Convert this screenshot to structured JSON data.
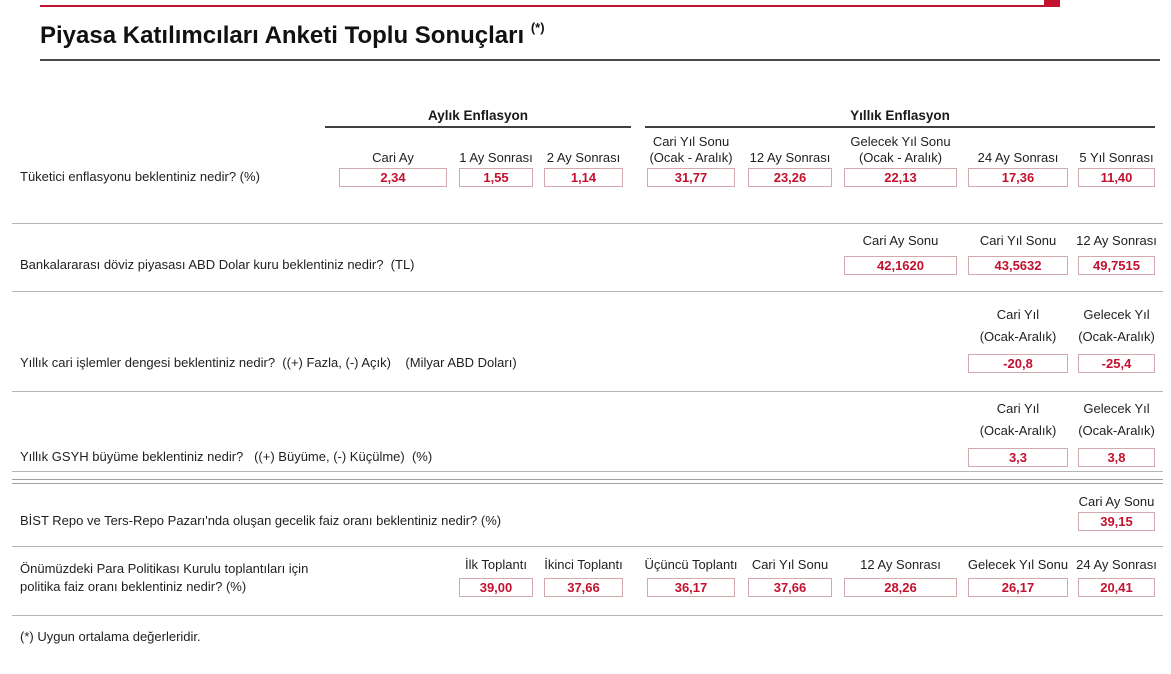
{
  "page": {
    "title": "Piyasa Katılımcıları Anketi Toplu Sonuçları",
    "title_note": "(*)",
    "footnote": "(*) Uygun ortalama değerleridir.",
    "accent_color": "#c3112f",
    "value_color": "#c3112f",
    "box_border_color": "#d2a9ad"
  },
  "table": {
    "group_headers": {
      "monthly": "Aylık Enflasyon",
      "yearly": "Yıllık Enflasyon"
    },
    "sections": [
      {
        "question": "Tüketici enflasyonu beklentiniz nedir? (%)",
        "columns": [
          {
            "header": "Cari Ay",
            "value": "2,34"
          },
          {
            "header": "1 Ay Sonrası",
            "value": "1,55"
          },
          {
            "header": "2 Ay Sonrası",
            "value": "1,14"
          },
          {
            "header": "Cari Yıl Sonu",
            "header2": "(Ocak - Aralık)",
            "value": "31,77"
          },
          {
            "header": "12 Ay Sonrası",
            "value": "23,26"
          },
          {
            "header": "Gelecek Yıl Sonu",
            "header2": "(Ocak - Aralık)",
            "value": "22,13"
          },
          {
            "header": "24 Ay Sonrası",
            "value": "17,36"
          },
          {
            "header": "5 Yıl Sonrası",
            "value": "11,40"
          }
        ]
      },
      {
        "question": "Bankalararası döviz piyasası ABD Dolar kuru beklentiniz nedir?  (TL)",
        "columns": [
          {
            "header": "Cari Ay Sonu",
            "value": "42,1620"
          },
          {
            "header": "Cari Yıl Sonu",
            "value": "43,5632"
          },
          {
            "header": "12 Ay Sonrası",
            "value": "49,7515"
          }
        ]
      },
      {
        "question": "Yıllık cari işlemler dengesi beklentiniz nedir?  ((+) Fazla, (-) Açık)    (Milyar ABD Doları)",
        "columns": [
          {
            "header": "Cari Yıl",
            "header2": "(Ocak-Aralık)",
            "value": "-20,8"
          },
          {
            "header": "Gelecek Yıl",
            "header2": "(Ocak-Aralık)",
            "value": "-25,4"
          }
        ]
      },
      {
        "question": "Yıllık GSYH büyüme beklentiniz nedir?   ((+) Büyüme, (-) Küçülme)  (%)",
        "columns": [
          {
            "header": "Cari Yıl",
            "header2": "(Ocak-Aralık)",
            "value": "3,3"
          },
          {
            "header": "Gelecek Yıl",
            "header2": "(Ocak-Aralık)",
            "value": "3,8"
          }
        ]
      },
      {
        "question": "BİST Repo ve Ters-Repo Pazarı'nda oluşan gecelik faiz oranı beklentiniz nedir? (%)",
        "columns": [
          {
            "header": "Cari Ay Sonu",
            "value": "39,15"
          }
        ]
      },
      {
        "question_line1": "Önümüzdeki Para Politikası Kurulu toplantıları için",
        "question_line2": "politika faiz oranı beklentiniz nedir? (%)",
        "columns": [
          {
            "header": "İlk Toplantı",
            "value": "39,00"
          },
          {
            "header": "İkinci Toplantı",
            "value": "37,66"
          },
          {
            "header": "Üçüncü Toplantı",
            "value": "36,17"
          },
          {
            "header": "Cari Yıl Sonu",
            "value": "37,66"
          },
          {
            "header": "12 Ay Sonrası",
            "value": "28,26"
          },
          {
            "header": "Gelecek Yıl Sonu",
            "value": "26,17"
          },
          {
            "header": "24 Ay Sonrası",
            "value": "20,41"
          }
        ]
      }
    ]
  }
}
